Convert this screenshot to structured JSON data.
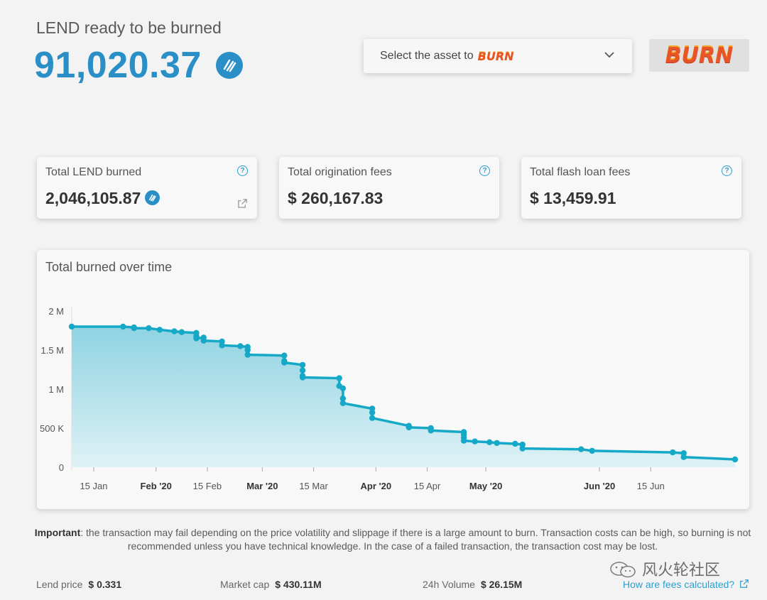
{
  "header": {
    "label": "LEND ready to be burned",
    "value": "91,020.37",
    "token_icon": "lend-token-icon"
  },
  "asset_select": {
    "placeholder_prefix": "Select the asset to",
    "placeholder_word": "BURN",
    "icon": "chevron-down-icon"
  },
  "burn_button": {
    "label": "BURN"
  },
  "cards": [
    {
      "title": "Total LEND burned",
      "value": "2,046,105.87",
      "help": "?"
    },
    {
      "title": "Total origination fees",
      "value": "$ 260,167.83",
      "help": "?"
    },
    {
      "title": "Total flash loan fees",
      "value": "$ 13,459.91",
      "help": "?"
    }
  ],
  "chart": {
    "title": "Total burned over time"
  },
  "chart_data": {
    "type": "area",
    "title": "Total burned over time",
    "y_ticks": [
      "2 M",
      "1.5 M",
      "1 M",
      "500 K",
      "0"
    ],
    "x_ticks": [
      {
        "label": "15 Jan",
        "bold": false
      },
      {
        "label": "Feb '20",
        "bold": true
      },
      {
        "label": "15 Feb",
        "bold": false
      },
      {
        "label": "Mar '20",
        "bold": true
      },
      {
        "label": "15 Mar",
        "bold": false
      },
      {
        "label": "Apr '20",
        "bold": true
      },
      {
        "label": "15 Apr",
        "bold": false
      },
      {
        "label": "May '20",
        "bold": true
      },
      {
        "label": "Jun '20",
        "bold": true
      },
      {
        "label": "15 Jun",
        "bold": false
      }
    ],
    "ylim": [
      0,
      2000000
    ],
    "x_unit": "days since 1 Jan 2020",
    "points": [
      [
        8,
        1800000
      ],
      [
        22,
        1800000
      ],
      [
        25,
        1790000
      ],
      [
        25,
        1780000
      ],
      [
        29,
        1780000
      ],
      [
        32,
        1760000
      ],
      [
        36,
        1740000
      ],
      [
        38,
        1730000
      ],
      [
        42,
        1720000
      ],
      [
        42,
        1680000
      ],
      [
        42,
        1650000
      ],
      [
        44,
        1660000
      ],
      [
        44,
        1620000
      ],
      [
        49,
        1610000
      ],
      [
        49,
        1560000
      ],
      [
        54,
        1550000
      ],
      [
        56,
        1540000
      ],
      [
        56,
        1500000
      ],
      [
        56,
        1440000
      ],
      [
        66,
        1430000
      ],
      [
        66,
        1360000
      ],
      [
        66,
        1340000
      ],
      [
        71,
        1310000
      ],
      [
        71,
        1240000
      ],
      [
        71,
        1170000
      ],
      [
        71,
        1150000
      ],
      [
        81,
        1140000
      ],
      [
        81,
        1040000
      ],
      [
        82,
        1010000
      ],
      [
        82,
        880000
      ],
      [
        82,
        820000
      ],
      [
        90,
        750000
      ],
      [
        90,
        700000
      ],
      [
        90,
        630000
      ],
      [
        100,
        530000
      ],
      [
        100,
        510000
      ],
      [
        106,
        500000
      ],
      [
        106,
        470000
      ],
      [
        115,
        450000
      ],
      [
        115,
        420000
      ],
      [
        115,
        380000
      ],
      [
        115,
        340000
      ],
      [
        118,
        330000
      ],
      [
        122,
        320000
      ],
      [
        124,
        310000
      ],
      [
        129,
        300000
      ],
      [
        131,
        290000
      ],
      [
        131,
        240000
      ],
      [
        147,
        230000
      ],
      [
        150,
        210000
      ],
      [
        172,
        190000
      ],
      [
        175,
        180000
      ],
      [
        175,
        130000
      ],
      [
        189,
        100000
      ]
    ],
    "color": "#15a8c7",
    "grid": false
  },
  "disclaimer": {
    "strong": "Important",
    "text": ": the transaction may fail depending on the price volatility and slippage if there is a large amount to burn. Transaction costs can be high, so burning is not recommended unless you have technical knowledge. In the case of a failed transaction, the transaction cost may be lost."
  },
  "footer": {
    "lend_price_label": "Lend price",
    "lend_price_value": "$ 0.331",
    "market_cap_label": "Market cap",
    "market_cap_value": "$ 430.11M",
    "volume_label": "24h Volume",
    "volume_value": "$ 26.15M",
    "fees_link": "How are fees calculated?"
  },
  "watermark": {
    "text": "风火轮社区"
  }
}
